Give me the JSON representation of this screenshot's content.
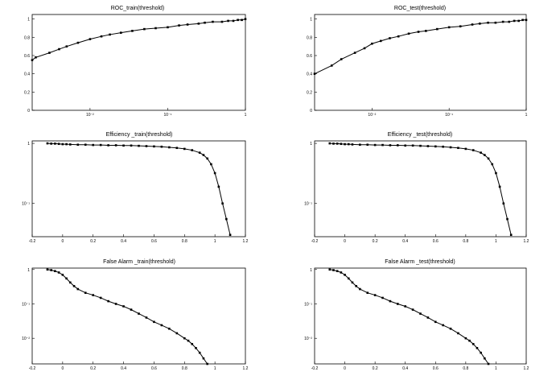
{
  "chart_data": [
    {
      "type": "line",
      "title": "ROC_train(threshold)",
      "xscale": "log",
      "yscale": "linear",
      "xlim": [
        0.0018,
        1
      ],
      "ylim": [
        0,
        1.05
      ],
      "xticks": [
        {
          "v": 0.01,
          "label": "10⁻²"
        },
        {
          "v": 0.1,
          "label": "10⁻¹"
        },
        {
          "v": 1,
          "label": "1"
        }
      ],
      "yticks": [
        {
          "v": 0,
          "label": "0"
        },
        {
          "v": 0.2,
          "label": "0.2"
        },
        {
          "v": 0.4,
          "label": "0.4"
        },
        {
          "v": 0.6,
          "label": "0.6"
        },
        {
          "v": 0.8,
          "label": "0.8"
        },
        {
          "v": 1,
          "label": "1"
        }
      ],
      "series": [
        {
          "x": [
            0.0018,
            0.002,
            0.003,
            0.004,
            0.005,
            0.007,
            0.01,
            0.014,
            0.018,
            0.025,
            0.035,
            0.05,
            0.07,
            0.1,
            0.14,
            0.18,
            0.25,
            0.3,
            0.38,
            0.5,
            0.6,
            0.7,
            0.8,
            0.9,
            1.0
          ],
          "y": [
            0.55,
            0.58,
            0.63,
            0.67,
            0.7,
            0.74,
            0.78,
            0.81,
            0.83,
            0.85,
            0.87,
            0.89,
            0.9,
            0.91,
            0.93,
            0.94,
            0.95,
            0.96,
            0.97,
            0.97,
            0.98,
            0.98,
            0.99,
            0.99,
            1.0
          ]
        }
      ]
    },
    {
      "type": "line",
      "title": "ROC_test(threshold)",
      "xscale": "log",
      "yscale": "linear",
      "xlim": [
        0.0018,
        1
      ],
      "ylim": [
        0,
        1.05
      ],
      "xticks": [
        {
          "v": 0.01,
          "label": "10⁻²"
        },
        {
          "v": 0.1,
          "label": "10⁻¹"
        },
        {
          "v": 1,
          "label": "1"
        }
      ],
      "yticks": [
        {
          "v": 0,
          "label": "0"
        },
        {
          "v": 0.2,
          "label": "0.2"
        },
        {
          "v": 0.4,
          "label": "0.4"
        },
        {
          "v": 0.6,
          "label": "0.6"
        },
        {
          "v": 0.8,
          "label": "0.8"
        },
        {
          "v": 1,
          "label": "1"
        }
      ],
      "series": [
        {
          "x": [
            0.0018,
            0.003,
            0.004,
            0.006,
            0.008,
            0.01,
            0.013,
            0.017,
            0.022,
            0.03,
            0.04,
            0.05,
            0.07,
            0.1,
            0.14,
            0.2,
            0.25,
            0.32,
            0.4,
            0.5,
            0.6,
            0.7,
            0.8,
            0.9,
            1.0
          ],
          "y": [
            0.4,
            0.49,
            0.56,
            0.63,
            0.68,
            0.73,
            0.76,
            0.79,
            0.81,
            0.84,
            0.86,
            0.87,
            0.89,
            0.91,
            0.92,
            0.94,
            0.95,
            0.96,
            0.96,
            0.97,
            0.97,
            0.98,
            0.98,
            0.99,
            0.99
          ]
        }
      ]
    },
    {
      "type": "line",
      "title": "Efficiency _train(threshold)",
      "xscale": "linear",
      "yscale": "log",
      "xlim": [
        -0.2,
        1.2
      ],
      "ylim": [
        0.028,
        1.1
      ],
      "xticks": [
        {
          "v": -0.2,
          "label": "-0.2"
        },
        {
          "v": 0,
          "label": "0"
        },
        {
          "v": 0.2,
          "label": "0.2"
        },
        {
          "v": 0.4,
          "label": "0.4"
        },
        {
          "v": 0.6,
          "label": "0.6"
        },
        {
          "v": 0.8,
          "label": "0.8"
        },
        {
          "v": 1,
          "label": "1"
        },
        {
          "v": 1.2,
          "label": "1.2"
        }
      ],
      "yticks": [
        {
          "v": 0.1,
          "label": "10⁻¹"
        },
        {
          "v": 1,
          "label": "1"
        }
      ],
      "series": [
        {
          "x": [
            -0.1,
            -0.075,
            -0.05,
            -0.025,
            0,
            0.025,
            0.05,
            0.1,
            0.15,
            0.2,
            0.25,
            0.3,
            0.35,
            0.4,
            0.45,
            0.5,
            0.55,
            0.6,
            0.65,
            0.7,
            0.75,
            0.8,
            0.85,
            0.9,
            0.925,
            0.95,
            0.975,
            1.0,
            1.025,
            1.05,
            1.075,
            1.1
          ],
          "y": [
            1,
            0.99,
            0.99,
            0.98,
            0.97,
            0.97,
            0.96,
            0.95,
            0.95,
            0.94,
            0.94,
            0.93,
            0.93,
            0.92,
            0.92,
            0.91,
            0.9,
            0.89,
            0.88,
            0.86,
            0.84,
            0.81,
            0.77,
            0.7,
            0.64,
            0.56,
            0.45,
            0.32,
            0.19,
            0.1,
            0.055,
            0.03
          ]
        }
      ]
    },
    {
      "type": "line",
      "title": "Efficiency _test(threshold)",
      "xscale": "linear",
      "yscale": "log",
      "xlim": [
        -0.2,
        1.2
      ],
      "ylim": [
        0.028,
        1.1
      ],
      "xticks": [
        {
          "v": -0.2,
          "label": "-0.2"
        },
        {
          "v": 0,
          "label": "0"
        },
        {
          "v": 0.2,
          "label": "0.2"
        },
        {
          "v": 0.4,
          "label": "0.4"
        },
        {
          "v": 0.6,
          "label": "0.6"
        },
        {
          "v": 0.8,
          "label": "0.8"
        },
        {
          "v": 1,
          "label": "1"
        },
        {
          "v": 1.2,
          "label": "1.2"
        }
      ],
      "yticks": [
        {
          "v": 0.1,
          "label": "10⁻¹"
        },
        {
          "v": 1,
          "label": "1"
        }
      ],
      "series": [
        {
          "x": [
            -0.1,
            -0.075,
            -0.05,
            -0.025,
            0,
            0.025,
            0.05,
            0.1,
            0.15,
            0.2,
            0.25,
            0.3,
            0.35,
            0.4,
            0.45,
            0.5,
            0.55,
            0.6,
            0.65,
            0.7,
            0.75,
            0.8,
            0.85,
            0.9,
            0.925,
            0.95,
            0.975,
            1.0,
            1.025,
            1.05,
            1.075,
            1.1
          ],
          "y": [
            1,
            0.99,
            0.99,
            0.98,
            0.97,
            0.97,
            0.96,
            0.95,
            0.95,
            0.94,
            0.94,
            0.93,
            0.93,
            0.92,
            0.92,
            0.91,
            0.9,
            0.89,
            0.88,
            0.86,
            0.84,
            0.81,
            0.77,
            0.7,
            0.64,
            0.56,
            0.45,
            0.32,
            0.19,
            0.1,
            0.055,
            0.03
          ]
        }
      ]
    },
    {
      "type": "line",
      "title": "False Alarm _train(threshold)",
      "xscale": "linear",
      "yscale": "log",
      "xlim": [
        -0.2,
        1.2
      ],
      "ylim": [
        0.0018,
        1.1
      ],
      "xticks": [
        {
          "v": -0.2,
          "label": "-0.2"
        },
        {
          "v": 0,
          "label": "0"
        },
        {
          "v": 0.2,
          "label": "0.2"
        },
        {
          "v": 0.4,
          "label": "0.4"
        },
        {
          "v": 0.6,
          "label": "0.6"
        },
        {
          "v": 0.8,
          "label": "0.8"
        },
        {
          "v": 1,
          "label": "1"
        },
        {
          "v": 1.2,
          "label": "1.2"
        }
      ],
      "yticks": [
        {
          "v": 0.01,
          "label": "10⁻²"
        },
        {
          "v": 0.1,
          "label": "10⁻¹"
        },
        {
          "v": 1,
          "label": "1"
        }
      ],
      "series": [
        {
          "x": [
            -0.1,
            -0.075,
            -0.05,
            -0.025,
            0,
            0.025,
            0.05,
            0.075,
            0.1,
            0.15,
            0.2,
            0.25,
            0.3,
            0.35,
            0.4,
            0.45,
            0.5,
            0.55,
            0.6,
            0.65,
            0.7,
            0.75,
            0.8,
            0.825,
            0.85,
            0.875,
            0.9,
            0.925,
            0.95
          ],
          "y": [
            1,
            0.96,
            0.9,
            0.82,
            0.7,
            0.55,
            0.42,
            0.33,
            0.27,
            0.21,
            0.18,
            0.15,
            0.12,
            0.1,
            0.085,
            0.068,
            0.052,
            0.04,
            0.03,
            0.024,
            0.019,
            0.014,
            0.01,
            0.0085,
            0.0068,
            0.0052,
            0.0038,
            0.0026,
            0.0018
          ]
        }
      ]
    },
    {
      "type": "line",
      "title": "False Alarm _test(threshold)",
      "xscale": "linear",
      "yscale": "log",
      "xlim": [
        -0.2,
        1.2
      ],
      "ylim": [
        0.0018,
        1.1
      ],
      "xticks": [
        {
          "v": -0.2,
          "label": "-0.2"
        },
        {
          "v": 0,
          "label": "0"
        },
        {
          "v": 0.2,
          "label": "0.2"
        },
        {
          "v": 0.4,
          "label": "0.4"
        },
        {
          "v": 0.6,
          "label": "0.6"
        },
        {
          "v": 0.8,
          "label": "0.8"
        },
        {
          "v": 1,
          "label": "1"
        },
        {
          "v": 1.2,
          "label": "1.2"
        }
      ],
      "yticks": [
        {
          "v": 0.01,
          "label": "10⁻²"
        },
        {
          "v": 0.1,
          "label": "10⁻¹"
        },
        {
          "v": 1,
          "label": "1"
        }
      ],
      "series": [
        {
          "x": [
            -0.1,
            -0.075,
            -0.05,
            -0.025,
            0,
            0.025,
            0.05,
            0.075,
            0.1,
            0.15,
            0.2,
            0.25,
            0.3,
            0.35,
            0.4,
            0.45,
            0.5,
            0.55,
            0.6,
            0.65,
            0.7,
            0.75,
            0.8,
            0.825,
            0.85,
            0.875,
            0.9,
            0.925,
            0.95
          ],
          "y": [
            1,
            0.96,
            0.9,
            0.82,
            0.7,
            0.55,
            0.42,
            0.33,
            0.27,
            0.21,
            0.18,
            0.15,
            0.12,
            0.1,
            0.085,
            0.068,
            0.052,
            0.04,
            0.03,
            0.024,
            0.019,
            0.014,
            0.01,
            0.0085,
            0.0068,
            0.0052,
            0.0038,
            0.0026,
            0.0018
          ]
        }
      ]
    }
  ]
}
